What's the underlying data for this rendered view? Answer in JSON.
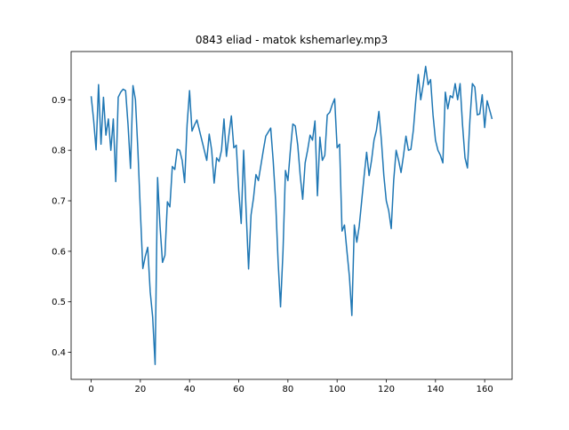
{
  "chart_data": {
    "type": "line",
    "title": "0843 eliad - matok kshemarley.mp3",
    "x": [
      0,
      1,
      2,
      3,
      4,
      5,
      6,
      7,
      8,
      9,
      10,
      11,
      12,
      13,
      14,
      15,
      16,
      17,
      18,
      19,
      20,
      21,
      22,
      23,
      24,
      25,
      26,
      27,
      28,
      29,
      30,
      31,
      32,
      33,
      34,
      35,
      36,
      37,
      38,
      39,
      40,
      41,
      42,
      43,
      44,
      45,
      46,
      47,
      48,
      49,
      50,
      51,
      52,
      53,
      54,
      55,
      56,
      57,
      58,
      59,
      60,
      61,
      62,
      63,
      64,
      65,
      66,
      67,
      68,
      69,
      70,
      71,
      72,
      73,
      74,
      75,
      76,
      77,
      78,
      79,
      80,
      81,
      82,
      83,
      84,
      85,
      86,
      87,
      88,
      89,
      90,
      91,
      92,
      93,
      94,
      95,
      96,
      97,
      98,
      99,
      100,
      101,
      102,
      103,
      104,
      105,
      106,
      107,
      108,
      109,
      110,
      111,
      112,
      113,
      114,
      115,
      116,
      117,
      118,
      119,
      120,
      121,
      122,
      123,
      124,
      125,
      126,
      127,
      128,
      129,
      130,
      131,
      132,
      133,
      134,
      135,
      136,
      137,
      138,
      139,
      140,
      141,
      142,
      143,
      144,
      145,
      146,
      147,
      148,
      149,
      150,
      151,
      152,
      153,
      154,
      155,
      156,
      157,
      158,
      159,
      160,
      161,
      162,
      163
    ],
    "series": [
      {
        "color": "#1f77b4",
        "values": [
          0.907,
          0.86,
          0.801,
          0.93,
          0.812,
          0.905,
          0.83,
          0.862,
          0.8,
          0.862,
          0.738,
          0.905,
          0.915,
          0.921,
          0.918,
          0.85,
          0.764,
          0.928,
          0.9,
          0.8,
          0.68,
          0.566,
          0.59,
          0.608,
          0.52,
          0.47,
          0.376,
          0.746,
          0.65,
          0.578,
          0.592,
          0.698,
          0.688,
          0.768,
          0.762,
          0.802,
          0.8,
          0.78,
          0.736,
          0.85,
          0.918,
          0.838,
          0.85,
          0.86,
          0.84,
          0.82,
          0.8,
          0.78,
          0.832,
          0.8,
          0.735,
          0.785,
          0.778,
          0.8,
          0.862,
          0.788,
          0.83,
          0.868,
          0.805,
          0.81,
          0.72,
          0.655,
          0.8,
          0.68,
          0.565,
          0.672,
          0.705,
          0.752,
          0.74,
          0.77,
          0.8,
          0.828,
          0.836,
          0.844,
          0.78,
          0.7,
          0.58,
          0.49,
          0.6,
          0.76,
          0.74,
          0.8,
          0.852,
          0.848,
          0.81,
          0.75,
          0.703,
          0.775,
          0.8,
          0.83,
          0.82,
          0.858,
          0.71,
          0.826,
          0.78,
          0.79,
          0.87,
          0.875,
          0.89,
          0.902,
          0.805,
          0.812,
          0.64,
          0.652,
          0.6,
          0.55,
          0.473,
          0.652,
          0.618,
          0.65,
          0.7,
          0.75,
          0.796,
          0.75,
          0.78,
          0.82,
          0.84,
          0.877,
          0.82,
          0.75,
          0.7,
          0.68,
          0.645,
          0.74,
          0.8,
          0.78,
          0.756,
          0.79,
          0.828,
          0.8,
          0.802,
          0.84,
          0.9,
          0.95,
          0.9,
          0.93,
          0.966,
          0.93,
          0.94,
          0.87,
          0.82,
          0.8,
          0.79,
          0.775,
          0.915,
          0.882,
          0.908,
          0.904,
          0.932,
          0.9,
          0.932,
          0.85,
          0.785,
          0.765,
          0.86,
          0.932,
          0.925,
          0.87,
          0.872,
          0.91,
          0.845,
          0.898,
          0.88,
          0.862
        ]
      }
    ],
    "xlim": [
      -8.15,
      171.15
    ],
    "xticks": [
      0,
      20,
      40,
      60,
      80,
      100,
      120,
      140,
      160
    ],
    "ylim": [
      0.3465,
      0.9955
    ],
    "yticks": [
      0.4,
      0.5,
      0.6,
      0.7,
      0.8,
      0.9
    ]
  }
}
